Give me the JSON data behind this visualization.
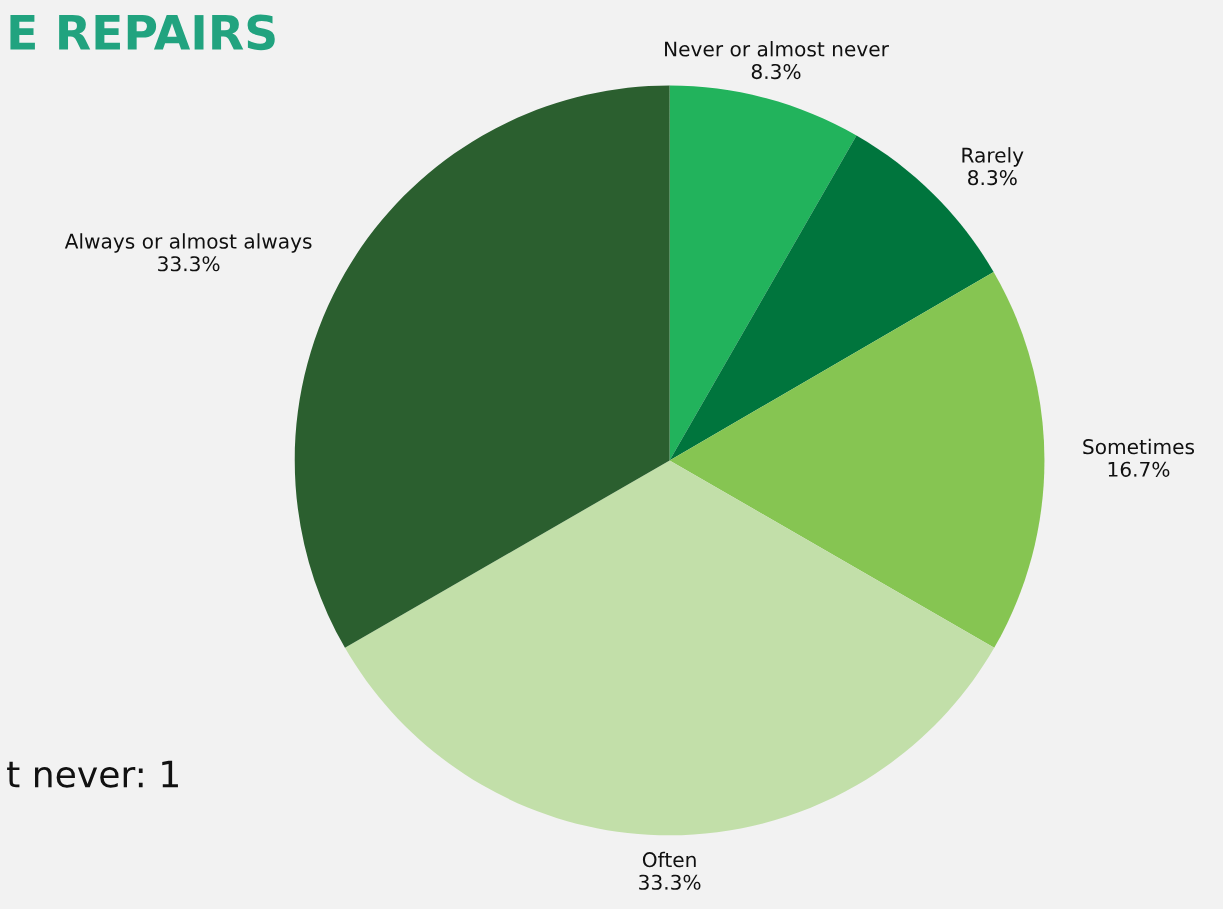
{
  "chart_data": {
    "type": "pie",
    "title": "E REPAIRS",
    "categories": [
      "Never or almost never",
      "Rarely",
      "Sometimes",
      "Often",
      "Always or almost always"
    ],
    "values": [
      8.3,
      8.3,
      16.7,
      33.3,
      33.3
    ],
    "value_labels": [
      "8.3%",
      "8.3%",
      "16.7%",
      "33.3%",
      "33.3%"
    ],
    "colors": [
      "#22b35c",
      "#00753d",
      "#86c552",
      "#c2dfa9",
      "#2b5f2f"
    ],
    "annotations": [
      "t never: 1"
    ],
    "legend": false
  }
}
